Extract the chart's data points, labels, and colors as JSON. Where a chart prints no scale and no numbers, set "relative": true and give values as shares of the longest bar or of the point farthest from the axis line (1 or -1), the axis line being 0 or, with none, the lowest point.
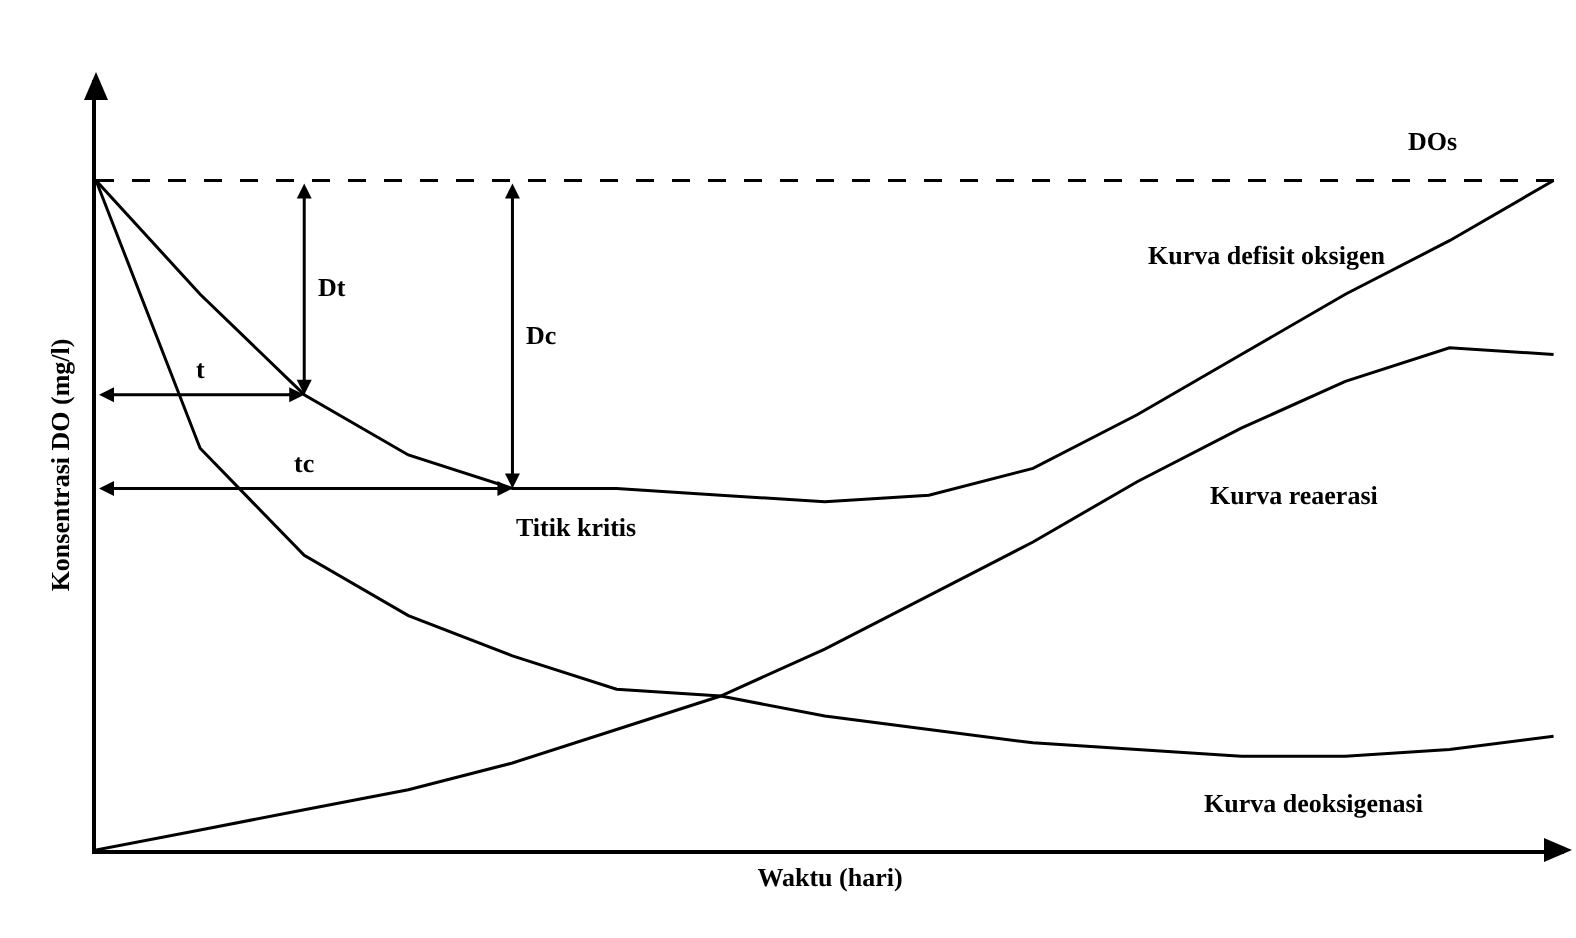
{
  "chart_data": {
    "type": "line",
    "relative": true,
    "xlabel": "Waktu (hari)",
    "ylabel": "Konsentrasi DO (mg/l)",
    "categories": [
      null,
      null,
      null,
      null,
      null,
      null,
      null,
      null,
      null,
      null,
      null,
      null,
      null,
      null,
      null
    ],
    "series": [
      {
        "name": "Kurva defisit oksigen",
        "color": "#000000",
        "values": [
          1,
          0.83,
          0.68,
          0.59,
          0.54,
          0.54,
          0.53,
          0.52,
          0.53,
          0.57,
          0.65,
          0.74,
          0.83,
          0.91,
          1
        ]
      },
      {
        "name": "Kurva reaerasi",
        "color": "#000000",
        "values": [
          0,
          0.03,
          0.06,
          0.09,
          0.13,
          0.18,
          0.23,
          0.3,
          0.38,
          0.46,
          0.55,
          0.63,
          0.7,
          0.75,
          0.74
        ]
      },
      {
        "name": "Kurva deoksigenasi",
        "color": "#000000",
        "values": [
          1,
          0.6,
          0.44,
          0.35,
          0.29,
          0.24,
          0.23,
          0.2,
          0.18,
          0.16,
          0.15,
          0.14,
          0.14,
          0.15,
          0.17
        ]
      }
    ],
    "ref_lines": [
      {
        "axis": "y",
        "value": 1,
        "label": "DOs",
        "line_style": "dashed",
        "color": "#000000"
      }
    ],
    "annotations": [
      "Dt",
      "Dc",
      "t",
      "tc",
      "Titik kritis"
    ],
    "legend": false,
    "marker": "none",
    "line_style": "solid"
  }
}
